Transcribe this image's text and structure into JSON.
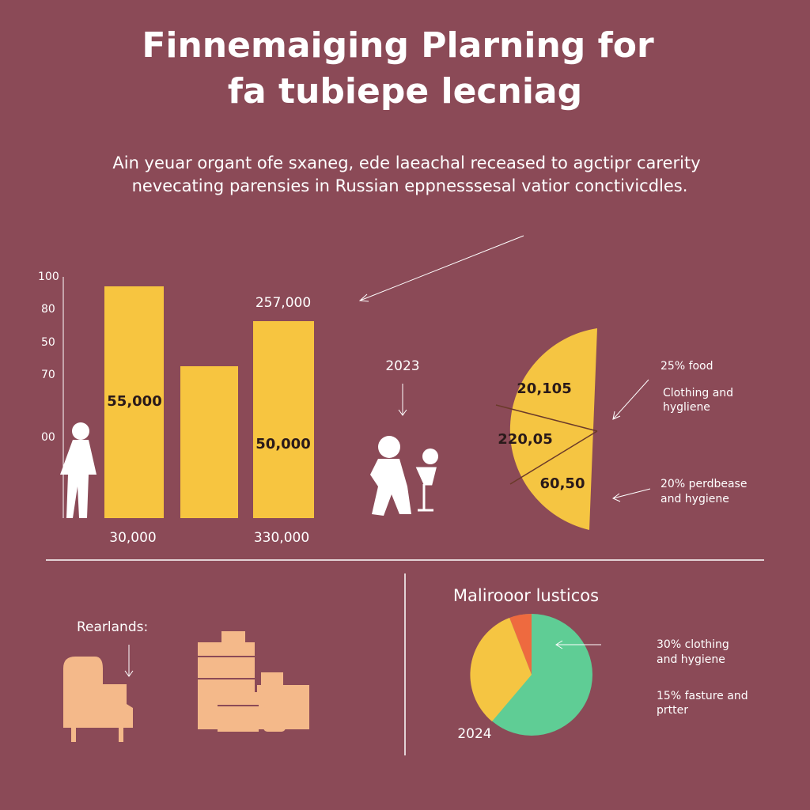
{
  "title": [
    "Finnemaiging Plarning  for",
    "fa tubiepe lecniag"
  ],
  "subtitle": [
    "Ain yeuar organt ofe sxaneg, ede laeachal receased to agctipr carerity",
    "nevecating parensies in Russian eppnesssesal vatior conctivicdles."
  ],
  "bar_chart": {
    "axis_labels": [
      "100",
      "80",
      "50",
      "70",
      "00"
    ],
    "labels": [
      "55,000",
      "257,000",
      "50,000",
      "30,000",
      "330,000"
    ]
  },
  "year_left": "2023",
  "half_pie": {
    "labels": [
      "20,105",
      "220,05",
      "60,50"
    ],
    "notes": [
      "25% food",
      "Clothing and",
      "hygliene",
      "20% perdbease",
      "and hygiene"
    ]
  },
  "furniture": {
    "label": "Rearlands:"
  },
  "pie": {
    "title": "Malirooor lusticos",
    "notes": [
      "30% clothing",
      "and hygiene",
      "15% fasture and",
      "prtter"
    ],
    "year": "2024"
  }
}
